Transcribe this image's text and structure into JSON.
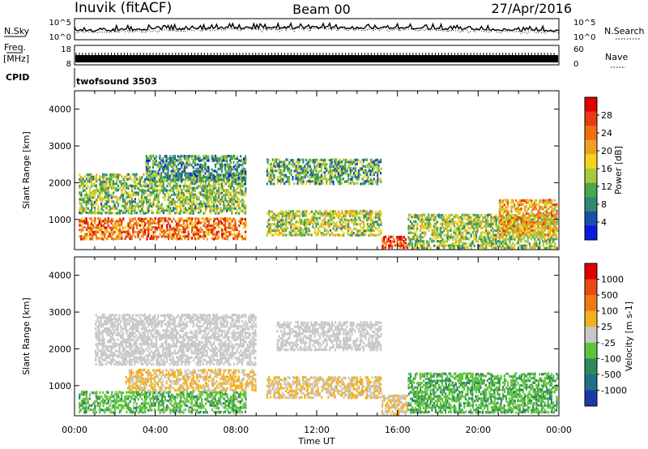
{
  "header": {
    "station": "Inuvik (fitACF)",
    "beam": "Beam 00",
    "date": "27/Apr/2016"
  },
  "noise_panel": {
    "left_label": "N.Sky",
    "right_label": "N.Search",
    "left_ticks": [
      "10^5",
      "10^0"
    ],
    "right_ticks": [
      "10^5",
      "10^0"
    ]
  },
  "freq_panel": {
    "left_label": "Freq.",
    "left_unit": "[MHz]",
    "left_ticks": [
      "18",
      "8"
    ],
    "right_label": "Nave",
    "right_ticks": [
      "60",
      "0"
    ]
  },
  "cpid_panel": {
    "label": "CPID",
    "value": "twofsound 3503"
  },
  "chart_data": [
    {
      "type": "heatmap",
      "name": "power",
      "ylabel": "Slant Range [km]",
      "xlabel": "",
      "ylim": [
        180,
        4500
      ],
      "yticks": [
        "1000",
        "2000",
        "3000",
        "4000"
      ],
      "colorbar": {
        "label": "Power [dB]",
        "ticks": [
          "4",
          "8",
          "12",
          "16",
          "20",
          "24",
          "28"
        ],
        "colors": [
          "#0a1adf",
          "#1a4fa8",
          "#2d8a6f",
          "#4aa84a",
          "#a8c83c",
          "#f2d51a",
          "#f0a020",
          "#ef7012",
          "#e83a14",
          "#e00000"
        ],
        "range": [
          0,
          32
        ]
      },
      "bands": [
        {
          "t0": 0.2,
          "t1": 8.5,
          "r0": 500,
          "r1": 1100,
          "v": 24
        },
        {
          "t0": 0.2,
          "t1": 8.5,
          "r0": 1200,
          "r1": 2300,
          "v": 13
        },
        {
          "t0": 3.5,
          "t1": 8.5,
          "r0": 2100,
          "r1": 2800,
          "v": 9
        },
        {
          "t0": 9.5,
          "t1": 15.2,
          "r0": 600,
          "r1": 1300,
          "v": 15
        },
        {
          "t0": 9.5,
          "t1": 15.2,
          "r0": 2000,
          "r1": 2700,
          "v": 11
        },
        {
          "t0": 15.2,
          "t1": 16.5,
          "r0": 200,
          "r1": 600,
          "v": 28
        },
        {
          "t0": 16.5,
          "t1": 24,
          "r0": 250,
          "r1": 1200,
          "v": 14
        },
        {
          "t0": 21,
          "t1": 24,
          "r0": 600,
          "r1": 1600,
          "v": 20
        }
      ]
    },
    {
      "type": "heatmap",
      "name": "velocity",
      "ylabel": "Slant Range [km]",
      "xlabel": "Time UT",
      "ylim": [
        180,
        4500
      ],
      "yticks": [
        "1000",
        "2000",
        "3000",
        "4000"
      ],
      "xticks": [
        "00:00",
        "04:00",
        "08:00",
        "12:00",
        "16:00",
        "20:00",
        "00:00"
      ],
      "xlim": [
        0,
        24
      ],
      "colorbar": {
        "label": "Velocity [m s-1]",
        "ticks": [
          "1000",
          "500",
          "100",
          "25",
          "-25",
          "-100",
          "-500",
          "-1000"
        ],
        "colors": [
          "#1a3aa8",
          "#1f6f8a",
          "#2e8a5a",
          "#5fc43a",
          "#c8c8c8",
          "#f2b020",
          "#ef7a12",
          "#e84a14",
          "#e00000"
        ],
        "range": [
          -1200,
          1200
        ]
      },
      "bands": [
        {
          "t0": 0.2,
          "t1": 8.5,
          "r0": 300,
          "r1": 900,
          "v": -300
        },
        {
          "t0": 2.5,
          "t1": 9.0,
          "r0": 900,
          "r1": 1500,
          "v": 200
        },
        {
          "t0": 1.0,
          "t1": 9.0,
          "r0": 1600,
          "r1": 3000,
          "v": 0
        },
        {
          "t0": 9.5,
          "t1": 15.2,
          "r0": 700,
          "r1": 1300,
          "v": 150
        },
        {
          "t0": 10,
          "t1": 15.2,
          "r0": 2000,
          "r1": 2800,
          "v": 0
        },
        {
          "t0": 15.2,
          "t1": 16.5,
          "r0": 250,
          "r1": 800,
          "v": 120
        },
        {
          "t0": 16.5,
          "t1": 24,
          "r0": 300,
          "r1": 1400,
          "v": -350
        }
      ]
    }
  ]
}
